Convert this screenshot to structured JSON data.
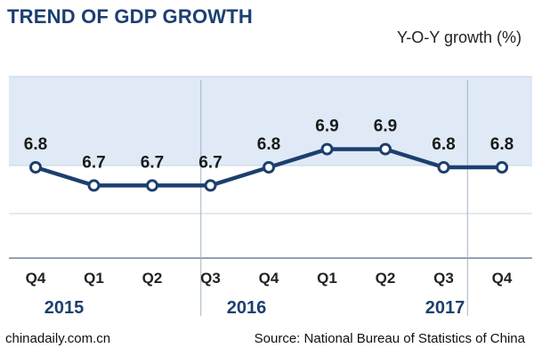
{
  "title": "TREND OF GDP GROWTH",
  "footer": {
    "site": "chinadaily.com.cn",
    "source": "Source: National Bureau of Statistics of China"
  },
  "colors": {
    "title": "#1c3f72",
    "line": "#1d3f6e",
    "band": "#dfeaf6",
    "grid": "#c3d4e6",
    "divider": "#9fb2c6",
    "year": "#1d3f6e"
  },
  "chart_data": {
    "type": "line",
    "title": "TREND OF GDP GROWTH",
    "ylabel": "Y-O-Y growth (%)",
    "xlabel": "",
    "categories": [
      "Q4",
      "Q1",
      "Q2",
      "Q3",
      "Q4",
      "Q1",
      "Q2",
      "Q3",
      "Q4"
    ],
    "years": [
      {
        "label": "2015",
        "span": [
          0,
          0
        ]
      },
      {
        "label": "2016",
        "span": [
          1,
          4
        ]
      },
      {
        "label": "2017",
        "span": [
          5,
          8
        ]
      }
    ],
    "series": [
      {
        "values": [
          6.8,
          6.7,
          6.7,
          6.7,
          6.8,
          6.9,
          6.9,
          6.8,
          6.8
        ]
      }
    ],
    "ylim": [
      6.3,
      7.3
    ],
    "grid": true,
    "data_labels": true
  }
}
